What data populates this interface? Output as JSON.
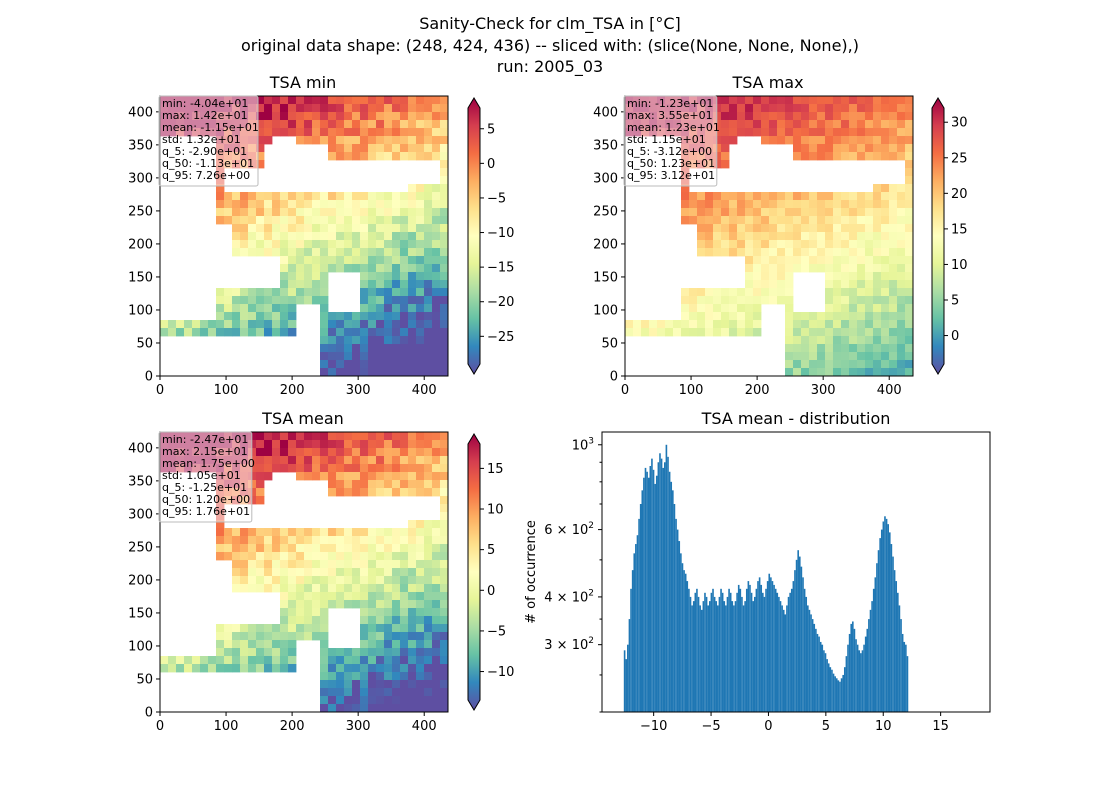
{
  "figure": {
    "title_lines": [
      "Sanity-Check for clm_TSA in [°C]",
      "original data shape: (248, 424, 436) -- sliced with: (slice(None, None, None),)",
      "run: 2005_03"
    ]
  },
  "colormap": {
    "name": "Spectral_r",
    "stops": [
      "#5e4fa2",
      "#3288bd",
      "#66c2a5",
      "#abdda4",
      "#e6f598",
      "#ffffbf",
      "#fee08b",
      "#fdae61",
      "#f46d43",
      "#d53e4f",
      "#9e0142"
    ]
  },
  "chart_data": [
    {
      "type": "heatmap",
      "title": "TSA min",
      "x_ticks": [
        "0",
        "100",
        "200",
        "300",
        "400"
      ],
      "y_ticks": [
        "0",
        "50",
        "100",
        "150",
        "200",
        "250",
        "300",
        "350",
        "400"
      ],
      "xlim": [
        0,
        436
      ],
      "ylim": [
        0,
        424
      ],
      "colorbar": {
        "range": [
          -29,
          8
        ],
        "ticks": [
          "5",
          "0",
          "−5",
          "−10",
          "−15",
          "−20",
          "−25"
        ],
        "tick_values": [
          5,
          0,
          -5,
          -10,
          -15,
          -20,
          -25
        ]
      },
      "stats": [
        "min: -4.04e+01",
        "max: 1.42e+01",
        "mean: -1.15e+01",
        "std: 1.32e+01",
        "q_5: -2.90e+01",
        "q_50: -1.13e+01",
        "q_95: 7.26e+00"
      ]
    },
    {
      "type": "heatmap",
      "title": "TSA max",
      "x_ticks": [
        "0",
        "100",
        "200",
        "300",
        "400"
      ],
      "y_ticks": [
        "0",
        "50",
        "100",
        "150",
        "200",
        "250",
        "300",
        "350",
        "400"
      ],
      "xlim": [
        0,
        436
      ],
      "ylim": [
        0,
        424
      ],
      "colorbar": {
        "range": [
          -4,
          32
        ],
        "ticks": [
          "30",
          "25",
          "20",
          "15",
          "10",
          "5",
          "0"
        ],
        "tick_values": [
          30,
          25,
          20,
          15,
          10,
          5,
          0
        ]
      },
      "stats": [
        "min: -1.23e+01",
        "max: 3.55e+01",
        "mean: 1.23e+01",
        "std: 1.15e+01",
        "q_5: -3.12e+00",
        "q_50: 1.23e+01",
        "q_95: 3.12e+01"
      ]
    },
    {
      "type": "heatmap",
      "title": "TSA mean",
      "x_ticks": [
        "0",
        "100",
        "200",
        "300",
        "400"
      ],
      "y_ticks": [
        "0",
        "50",
        "100",
        "150",
        "200",
        "250",
        "300",
        "350",
        "400"
      ],
      "xlim": [
        0,
        436
      ],
      "ylim": [
        0,
        424
      ],
      "colorbar": {
        "range": [
          -13.5,
          18
        ],
        "ticks": [
          "15",
          "10",
          "5",
          "0",
          "−5",
          "−10"
        ],
        "tick_values": [
          15,
          10,
          5,
          0,
          -5,
          -10
        ]
      },
      "stats": [
        "min: -2.47e+01",
        "max: 2.15e+01",
        "mean: 1.75e+00",
        "std: 1.05e+01",
        "q_5: -1.25e+01",
        "q_50: 1.20e+00",
        "q_95: 1.76e+01"
      ]
    },
    {
      "type": "bar",
      "title": "TSA mean - distribution",
      "ylabel": "# of occurrence",
      "yscale": "log",
      "xlim": [
        -14.5,
        19.3
      ],
      "ylim": [
        200,
        1080
      ],
      "x_ticks": [
        "−10",
        "−5",
        "0",
        "5",
        "10",
        "15"
      ],
      "x_tick_values": [
        -10,
        -5,
        0,
        5,
        10,
        15
      ],
      "y_ticks": [
        "10",
        "6 × 10",
        "4 × 10",
        "3 × 10"
      ],
      "y_tick_exponents": [
        "3",
        "2",
        "2",
        "2"
      ],
      "y_tick_values": [
        1000,
        600,
        400,
        300
      ],
      "bin_start": -12.6,
      "bin_width": 0.14,
      "values": [
        290,
        275,
        300,
        350,
        420,
        470,
        520,
        550,
        580,
        640,
        700,
        760,
        820,
        870,
        850,
        820,
        880,
        920,
        860,
        790,
        830,
        900,
        950,
        920,
        870,
        900,
        1000,
        930,
        850,
        800,
        760,
        700,
        640,
        600,
        560,
        520,
        490,
        470,
        460,
        440,
        420,
        400,
        380,
        390,
        410,
        420,
        400,
        380,
        370,
        390,
        410,
        400,
        380,
        390,
        410,
        420,
        400,
        390,
        380,
        400,
        420,
        410,
        390,
        380,
        400,
        420,
        410,
        390,
        380,
        390,
        410,
        430,
        420,
        400,
        380,
        390,
        420,
        440,
        430,
        410,
        390,
        400,
        420,
        440,
        450,
        430,
        410,
        400,
        420,
        440,
        460,
        450,
        440,
        430,
        420,
        410,
        400,
        390,
        380,
        370,
        360,
        380,
        400,
        410,
        420,
        440,
        470,
        500,
        530,
        510,
        480,
        450,
        420,
        400,
        380,
        370,
        360,
        350,
        340,
        330,
        320,
        315,
        305,
        300,
        290,
        285,
        275,
        268,
        262,
        258,
        252,
        248,
        245,
        242,
        240,
        245,
        250,
        262,
        280,
        300,
        320,
        340,
        345,
        330,
        310,
        300,
        290,
        285,
        290,
        300,
        315,
        330,
        350,
        370,
        390,
        420,
        450,
        490,
        530,
        570,
        600,
        630,
        650,
        640,
        620,
        590,
        550,
        510,
        470,
        440,
        410,
        380,
        350,
        320,
        305,
        300,
        280
      ]
    }
  ]
}
